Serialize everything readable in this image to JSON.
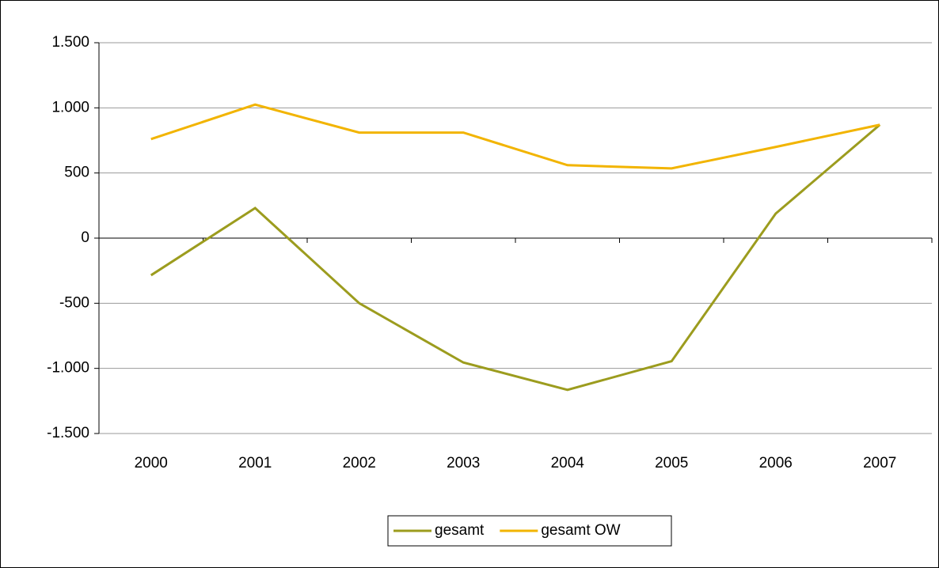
{
  "chart_data": {
    "type": "line",
    "categories": [
      "2000",
      "2001",
      "2002",
      "2003",
      "2004",
      "2005",
      "2006",
      "2007"
    ],
    "series": [
      {
        "name": "gesamt",
        "color": "#9c9c1e",
        "values": [
          -285,
          231,
          -500,
          -955,
          -1165,
          -945,
          188,
          870
        ]
      },
      {
        "name": "gesamt OW",
        "color": "#f2b400",
        "values": [
          760,
          1025,
          810,
          810,
          560,
          535,
          700,
          870
        ]
      }
    ],
    "ylim": [
      -1500,
      1500
    ],
    "yticks": [
      {
        "value": -1500,
        "label": "-1.500"
      },
      {
        "value": -1000,
        "label": "-1.000"
      },
      -500,
      0,
      500,
      {
        "value": 1000,
        "label": "1.000"
      },
      {
        "value": 1500,
        "label": "1.500"
      }
    ],
    "grid": true,
    "legend": "bottom"
  }
}
